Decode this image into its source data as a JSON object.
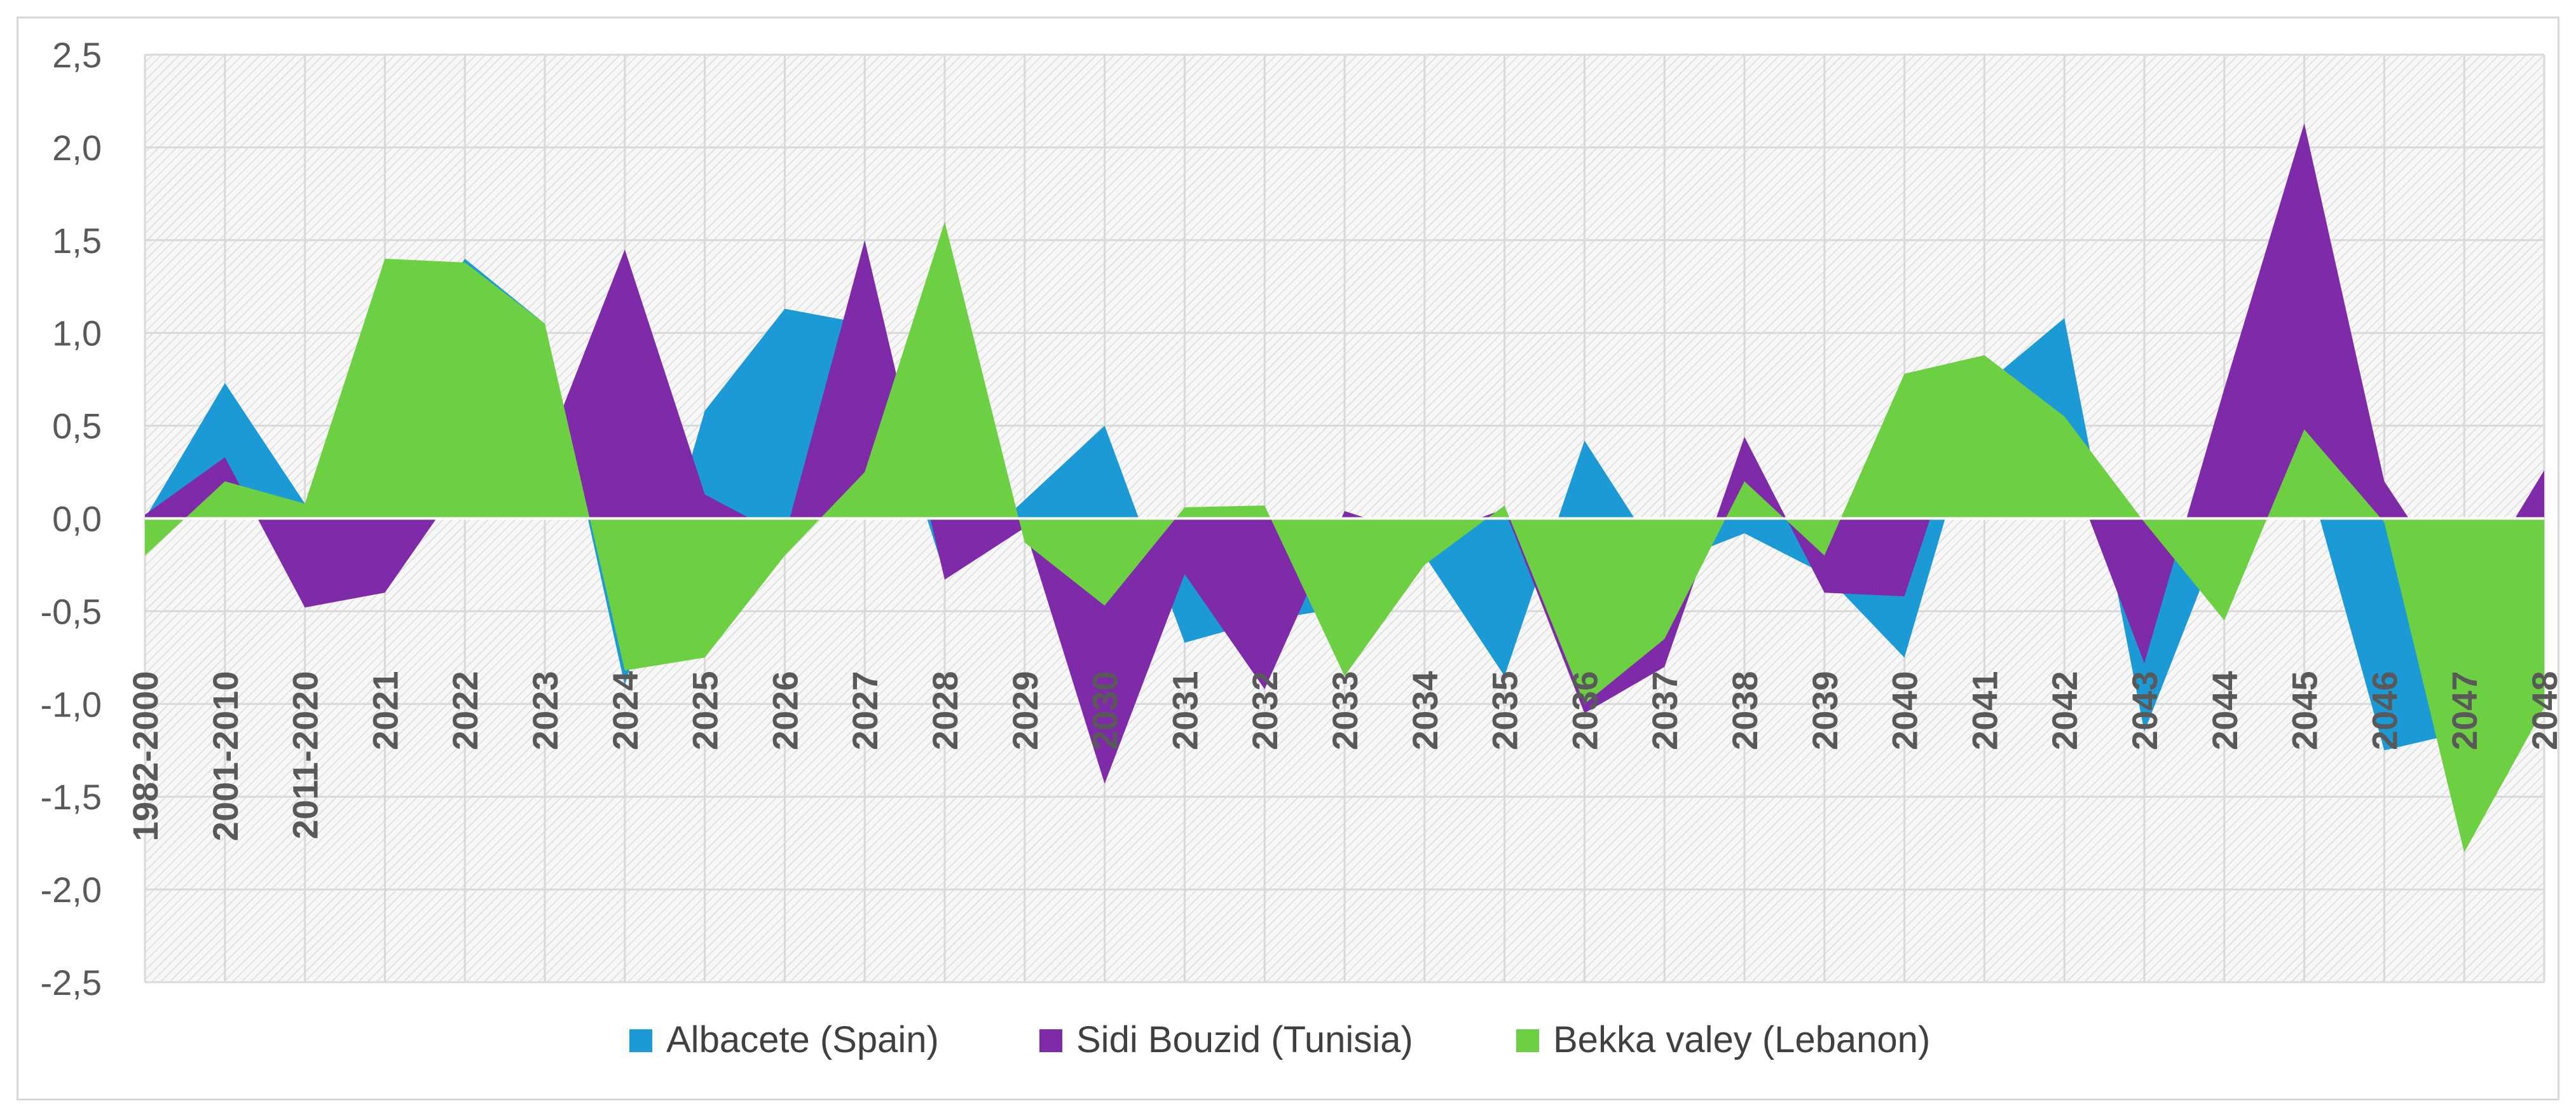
{
  "chart_data": {
    "type": "area",
    "title": "",
    "xlabel": "",
    "ylabel": "",
    "ylim": [
      -2.5,
      2.5
    ],
    "yticks": [
      "2,5",
      "2,0",
      "1,5",
      "1,0",
      "0,5",
      "0,0",
      "-0,5",
      "-1,0",
      "-1,5",
      "-2,0",
      "-2,5"
    ],
    "ytick_values": [
      2.5,
      2.0,
      1.5,
      1.0,
      0.5,
      0.0,
      -0.5,
      -1.0,
      -1.5,
      -2.0,
      -2.5
    ],
    "grid": true,
    "legend_position": "bottom",
    "categories": [
      "1982-2000",
      "2001-2010",
      "2011-2020",
      "2021",
      "2022",
      "2023",
      "2024",
      "2025",
      "2026",
      "2027",
      "2028",
      "2029",
      "2030",
      "2031",
      "2032",
      "2033",
      "2034",
      "2035",
      "2036",
      "2037",
      "2038",
      "2039",
      "2040",
      "2041",
      "2042",
      "2043",
      "2044",
      "2045",
      "2046",
      "2047",
      "2048"
    ],
    "series": [
      {
        "name": "Albacete (Spain)",
        "color": "#1b9ad6",
        "values": [
          0.0,
          0.73,
          0.08,
          0.75,
          1.4,
          1.05,
          -0.9,
          0.58,
          1.13,
          1.05,
          -0.3,
          0.1,
          0.5,
          -0.67,
          -0.55,
          -0.48,
          -0.2,
          -0.85,
          0.42,
          -0.25,
          -0.08,
          -0.3,
          -0.75,
          0.72,
          1.08,
          -1.15,
          -0.05,
          0.3,
          -1.25,
          -1.15,
          0.0
        ]
      },
      {
        "name": "Sidi Bouzid (Tunisia)",
        "color": "#7f2aa8",
        "values": [
          0.02,
          0.33,
          -0.48,
          -0.4,
          0.22,
          0.35,
          1.45,
          0.13,
          -0.1,
          1.5,
          -0.33,
          -0.05,
          -1.43,
          -0.3,
          -0.92,
          0.04,
          -0.1,
          0.05,
          -1.05,
          -0.8,
          0.44,
          -0.4,
          -0.42,
          0.88,
          0.35,
          -0.78,
          0.7,
          2.13,
          0.2,
          -0.45,
          0.26
        ]
      },
      {
        "name": "Bekka valey (Lebanon)",
        "color": "#6dd042",
        "values": [
          -0.2,
          0.2,
          0.08,
          1.4,
          1.38,
          1.05,
          -0.82,
          -0.75,
          -0.2,
          0.25,
          1.6,
          -0.13,
          -0.47,
          0.06,
          0.07,
          -0.85,
          -0.25,
          0.07,
          -1.0,
          -0.65,
          0.2,
          -0.2,
          0.78,
          0.88,
          0.55,
          -0.02,
          -0.55,
          0.48,
          -0.02,
          -1.8,
          -1.02
        ]
      }
    ]
  }
}
